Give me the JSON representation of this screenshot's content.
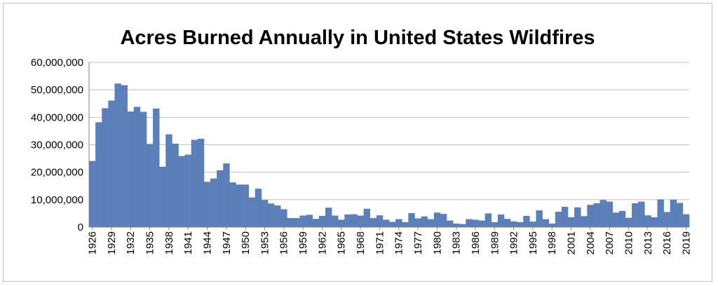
{
  "chart_data": {
    "type": "bar",
    "title": "Acres Burned Annually in United States Wildfires",
    "xlabel": "",
    "ylabel": "",
    "ylim": [
      0,
      60000000
    ],
    "y_ticks": [
      0,
      10000000,
      20000000,
      30000000,
      40000000,
      50000000,
      60000000
    ],
    "y_tick_labels": [
      "0",
      "10,000,000",
      "20,000,000",
      "30,000,000",
      "40,000,000",
      "50,000,000",
      "60,000,000"
    ],
    "x_tick_labels": [
      "1926",
      "1929",
      "1932",
      "1935",
      "1938",
      "1941",
      "1944",
      "1947",
      "1950",
      "1953",
      "1956",
      "1959",
      "1962",
      "1965",
      "1968",
      "1971",
      "1974",
      "1977",
      "1980",
      "1983",
      "1986",
      "1989",
      "1992",
      "1995",
      "1998",
      "2001",
      "2004",
      "2007",
      "2010",
      "2013",
      "2016",
      "2019"
    ],
    "grid": true,
    "bar_color": "#5b7fb8",
    "categories": [
      1926,
      1927,
      1928,
      1929,
      1930,
      1931,
      1932,
      1933,
      1934,
      1935,
      1936,
      1937,
      1938,
      1939,
      1940,
      1941,
      1942,
      1943,
      1944,
      1945,
      1946,
      1947,
      1948,
      1949,
      1950,
      1951,
      1952,
      1953,
      1954,
      1955,
      1956,
      1957,
      1958,
      1959,
      1960,
      1961,
      1962,
      1963,
      1964,
      1965,
      1966,
      1967,
      1968,
      1969,
      1970,
      1971,
      1972,
      1973,
      1974,
      1975,
      1976,
      1977,
      1978,
      1979,
      1980,
      1981,
      1982,
      1983,
      1984,
      1985,
      1986,
      1987,
      1988,
      1989,
      1990,
      1991,
      1992,
      1993,
      1994,
      1995,
      1996,
      1997,
      1998,
      1999,
      2000,
      2001,
      2002,
      2003,
      2004,
      2005,
      2006,
      2007,
      2008,
      2009,
      2010,
      2011,
      2012,
      2013,
      2014,
      2015,
      2016,
      2017,
      2018,
      2019
    ],
    "values": [
      24100000,
      38200000,
      43300000,
      46100000,
      52300000,
      51700000,
      42100000,
      43800000,
      42000000,
      30300000,
      43200000,
      22000000,
      33800000,
      30400000,
      25900000,
      26400000,
      31800000,
      32200000,
      16500000,
      17700000,
      20700000,
      23200000,
      16300000,
      15500000,
      15500000,
      10800000,
      14000000,
      9900000,
      8600000,
      7900000,
      6500000,
      3300000,
      3300000,
      4200000,
      4500000,
      3000000,
      4100000,
      7100000,
      4200000,
      2700000,
      4600000,
      4700000,
      4200000,
      6700000,
      3300000,
      4300000,
      2700000,
      1900000,
      2900000,
      1800000,
      5100000,
      3200000,
      3900000,
      2900000,
      5300000,
      4800000,
      2400000,
      1300000,
      1100000,
      2900000,
      2700000,
      2400000,
      5000000,
      1800000,
      4600000,
      3000000,
      2100000,
      1800000,
      4100000,
      2000000,
      6100000,
      2900000,
      1300000,
      5600000,
      7400000,
      3600000,
      7200000,
      4000000,
      8100000,
      8700000,
      9900000,
      9300000,
      5300000,
      5900000,
      3400000,
      8700000,
      9300000,
      4300000,
      3600000,
      10100000,
      5500000,
      10000000,
      8800000,
      4700000
    ]
  }
}
